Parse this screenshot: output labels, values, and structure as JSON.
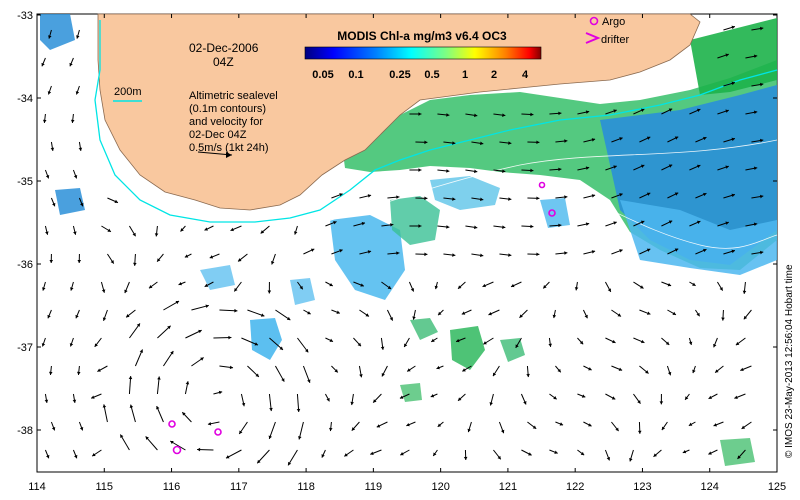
{
  "title": "MODIS Chl-a mg/m3 v6.4 OC3",
  "date": "02-Dec-2006",
  "time": "04Z",
  "isobath_label": "200m",
  "info_lines": [
    "Altimetric sealevel",
    "(0.1m contours)",
    "and velocity for",
    "02-Dec 04Z",
    "0.5m/s (1kt 24h)"
  ],
  "legend": {
    "argo": "Argo",
    "drifter": "drifter"
  },
  "colorbar": {
    "ticks": [
      "0.05",
      "0.1",
      "0.25",
      "0.5",
      "1",
      "2",
      "4"
    ],
    "colors": [
      "#00007f",
      "#0000ff",
      "#0080ff",
      "#00ffff",
      "#80ff80",
      "#ffff00",
      "#ff8000",
      "#ff0000",
      "#7f0000"
    ]
  },
  "x_ticks": [
    "114",
    "115",
    "116",
    "117",
    "118",
    "119",
    "120",
    "121",
    "122",
    "123",
    "124",
    "125"
  ],
  "y_ticks": [
    "-33",
    "-34",
    "-35",
    "-36",
    "-37",
    "-38"
  ],
  "credit": "© IMOS 23-May-2013 12:56:04 Hobart time",
  "colors": {
    "land": "#f9c89f",
    "isobath": "#00e5e5"
  }
}
